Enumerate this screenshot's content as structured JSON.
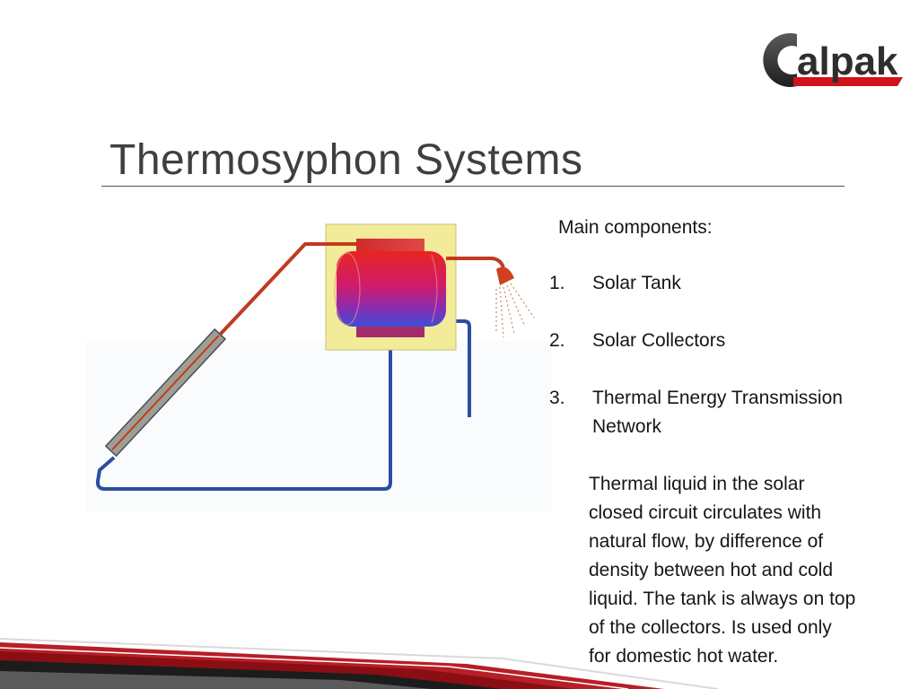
{
  "slide": {
    "title": "Thermosyphon Systems",
    "logo": {
      "text": "Calpak",
      "brand_color": "#3a3a3a",
      "accent_color": "#d0121b"
    },
    "intro": "Main components:",
    "components": [
      {
        "number": "1.",
        "label": "Solar Tank"
      },
      {
        "number": "2.",
        "label": "Solar Collectors"
      },
      {
        "number": "3.",
        "label_line1": "Thermal Energy Transmission",
        "label_line2": "Network"
      }
    ],
    "description_lines": [
      "Thermal liquid in the solar",
      "closed circuit circulates with",
      "natural flow, by difference of",
      "density between hot and cold",
      "liquid. The tank is always on top",
      "of the collectors. Is used only",
      "for domestic hot water."
    ],
    "colors": {
      "hot_pipe": "#c23a1e",
      "cold_pipe": "#2c4da0",
      "tank_frame": "#f2eb9a",
      "collector": "#9e9f93",
      "footer_red": "#b3121b"
    }
  }
}
